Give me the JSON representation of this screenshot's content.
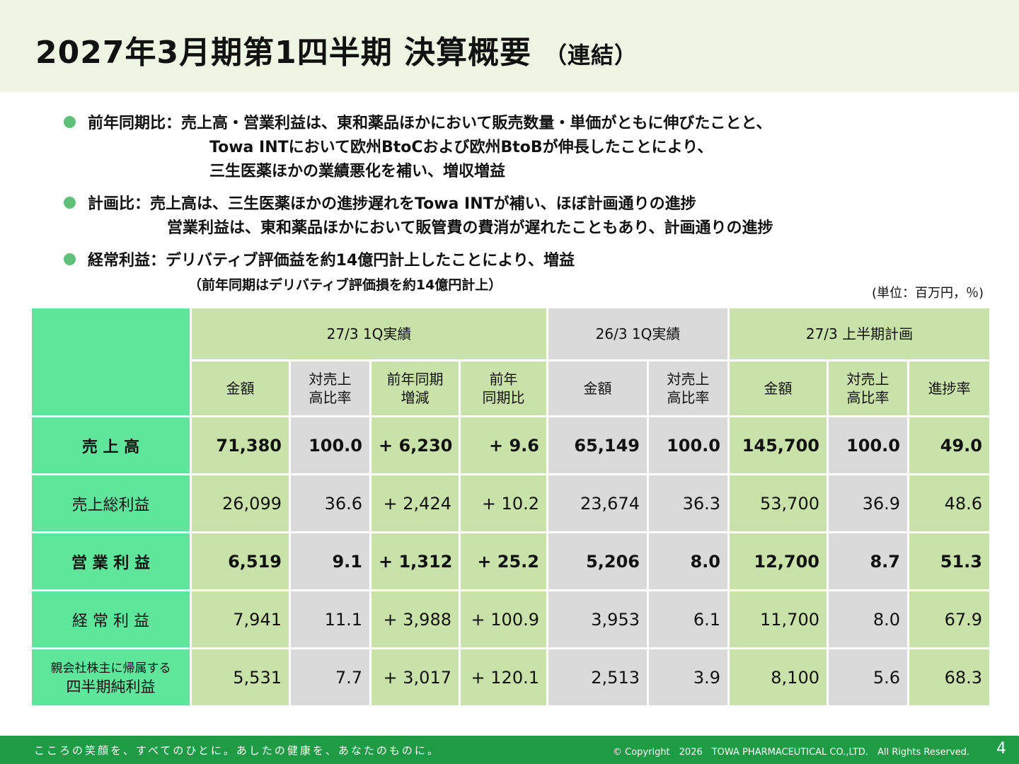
{
  "title": {
    "main": "2027年3月期第1四半期 決算概要",
    "sub": "（連結）"
  },
  "bullets": [
    {
      "lines": [
        "前年同期比：売上高・営業利益は、東和薬品ほかにおいて販売数量・単価がともに伸びたことと、",
        "Towa INTにおいて欧州BtoCおよび欧州BtoBが伸長したことにより、",
        "三生医薬ほかの業績悪化を補い、増収増益"
      ]
    },
    {
      "lines": [
        "計画比：売上高は、三生医薬ほかの進捗遅れをTowa INTが補い、ほぼ計画通りの進捗",
        "営業利益は、東和薬品ほかにおいて販管費の費消が遅れたこともあり、計画通りの進捗"
      ]
    },
    {
      "lines": [
        "経常利益：デリバティブ評価益を約14億円計上したことにより、増益",
        "（前年同期はデリバティブ評価損を約14億円計上）"
      ]
    }
  ],
  "unit_note": "(単位：百万円，％)",
  "table": {
    "groups": [
      "27/3 1Q実績",
      "26/3 1Q実績",
      "27/3 上半期計画"
    ],
    "subheaders": [
      [
        "金額"
      ],
      [
        "対売上",
        "高比率"
      ],
      [
        "前年同期",
        "増減"
      ],
      [
        "前年",
        "同期比"
      ],
      [
        "金額"
      ],
      [
        "対売上",
        "高比率"
      ],
      [
        "金額"
      ],
      [
        "対売上",
        "高比率"
      ],
      [
        "進捗率"
      ]
    ],
    "rows": [
      {
        "label": "売 上 高",
        "values": [
          "71,380",
          "100.0",
          "+ 6,230",
          "+ 9.6",
          "65,149",
          "100.0",
          "145,700",
          "100.0",
          "49.0"
        ]
      },
      {
        "label": "売上総利益",
        "values": [
          "26,099",
          "36.6",
          "+ 2,424",
          "+ 10.2",
          "23,674",
          "36.3",
          "53,700",
          "36.9",
          "48.6"
        ]
      },
      {
        "label": "営 業 利 益",
        "values": [
          "6,519",
          "9.1",
          "+ 1,312",
          "+ 25.2",
          "5,206",
          "8.0",
          "12,700",
          "8.7",
          "51.3"
        ]
      },
      {
        "label": "経 常 利 益",
        "values": [
          "7,941",
          "11.1",
          "+ 3,988",
          "+ 100.9",
          "3,953",
          "6.1",
          "11,700",
          "8.0",
          "67.9"
        ]
      },
      {
        "label_line1": "親会社株主に帰属する",
        "label_line2": "四半期純利益",
        "values": [
          "5,531",
          "7.7",
          "+ 3,017",
          "+ 120.1",
          "2,513",
          "3.9",
          "8,100",
          "5.6",
          "68.3"
        ]
      }
    ]
  },
  "footer": {
    "slogan": "こころの笑顔を、すべてのひとに。あしたの健康を、あなたのものに。",
    "copyright": "© Copyright　2026　TOWA PHARMACEUTICAL CO.,LTD.　All Rights Reserved.",
    "page": "4"
  },
  "colors": {
    "header_band": "#eef5e2",
    "label_green": "#5fe59c",
    "pale_green": "#c9e2aa",
    "gray": "#dadada",
    "footer": "#1f9a45",
    "bullet": "#5fc07a"
  }
}
